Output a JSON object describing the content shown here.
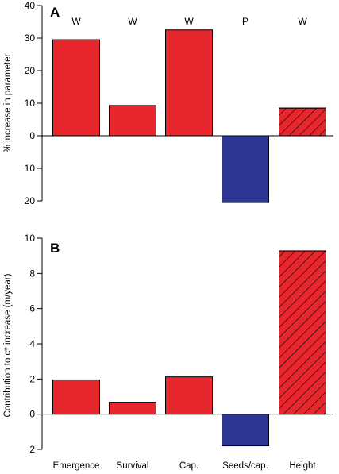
{
  "colors": {
    "red": "#e8262d",
    "blue": "#2e3894",
    "edge": "#000000",
    "axis": "#000000"
  },
  "categories": [
    "Emergence",
    "Survival",
    "Cap.",
    "Seeds/cap.",
    "Height"
  ],
  "chart_data": [
    {
      "type": "bar",
      "panel_label": "A",
      "ylabel": "% increase in parameter",
      "categories": [
        "Emergence",
        "Survival",
        "Cap.",
        "Seeds/cap.",
        "Height"
      ],
      "values": [
        29.5,
        9.3,
        32.5,
        -20.5,
        8.5
      ],
      "bar_colors": [
        "red",
        "red",
        "red",
        "blue",
        "red"
      ],
      "hatched": [
        false,
        false,
        false,
        false,
        true
      ],
      "top_labels": [
        "W",
        "W",
        "W",
        "P",
        "W"
      ],
      "ylim": [
        -20,
        40
      ],
      "yticks": [
        40,
        30,
        20,
        10,
        0,
        -10,
        -20
      ],
      "ytick_labels": [
        "40",
        "30",
        "20",
        "10",
        "0",
        "10",
        "20"
      ],
      "grid": false,
      "legend": "none"
    },
    {
      "type": "bar",
      "panel_label": "B",
      "ylabel": "Contribution to c* increase (m/year)",
      "categories": [
        "Emergence",
        "Survival",
        "Cap.",
        "Seeds/cap.",
        "Height"
      ],
      "values": [
        1.95,
        0.68,
        2.12,
        -1.8,
        9.28
      ],
      "bar_colors": [
        "red",
        "red",
        "red",
        "blue",
        "red"
      ],
      "hatched": [
        false,
        false,
        false,
        false,
        true
      ],
      "ylim": [
        -2,
        10
      ],
      "yticks": [
        10,
        8,
        6,
        4,
        2,
        0,
        -2
      ],
      "ytick_labels": [
        "10",
        "8",
        "6",
        "4",
        "2",
        "0",
        "2"
      ],
      "grid": false,
      "legend": "none"
    }
  ]
}
